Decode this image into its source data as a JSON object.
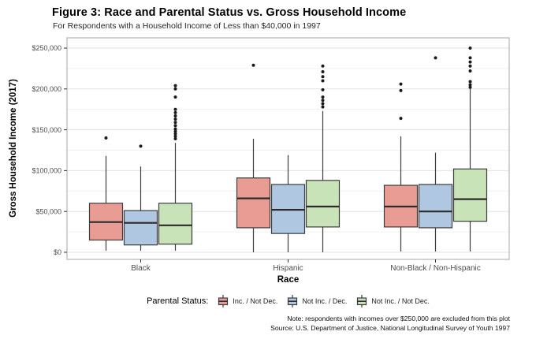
{
  "chart_data": {
    "type": "boxplot",
    "title": "Figure 3: Race and Parental Status vs. Gross Household Income",
    "subtitle": "For Respondents with a Household Income of Less than $40,000 in 1997",
    "xlabel": "Race",
    "ylabel": "Gross Household Income (2017)",
    "note": "Note: respondents with incomes over $250,000 are excluded from this plot",
    "source": "Source: U.S. Department of Justice, National Longitudinal Survey of Youth 1997",
    "legend_title": "Parental Status:",
    "legend_position": "bottom",
    "grid": true,
    "ylim": [
      0,
      250000
    ],
    "y_ticks": [
      {
        "value": 0,
        "label": "$0"
      },
      {
        "value": 50000,
        "label": "$50,000"
      },
      {
        "value": 100000,
        "label": "$100,000"
      },
      {
        "value": 150000,
        "label": "$150,000"
      },
      {
        "value": 200000,
        "label": "$200,000"
      },
      {
        "value": 250000,
        "label": "$250,000"
      }
    ],
    "y_minor_ticks": [
      25000,
      75000,
      125000,
      175000,
      225000
    ],
    "categories": [
      "Black",
      "Hispanic",
      "Non-Black / Non-Hispanic"
    ],
    "series": [
      {
        "name": "Inc. / Not Dec.",
        "color": "#E89C94",
        "boxes": [
          {
            "low": 2000,
            "q1": 15000,
            "median": 37000,
            "q3": 60000,
            "high": 118000,
            "outliers": [
              140000
            ]
          },
          {
            "low": 0,
            "q1": 30000,
            "median": 66000,
            "q3": 91000,
            "high": 139000,
            "outliers": [
              229000
            ]
          },
          {
            "low": 1000,
            "q1": 31000,
            "median": 56000,
            "q3": 82000,
            "high": 142000,
            "outliers": [
              164000,
              198000,
              206000
            ]
          }
        ]
      },
      {
        "name": "Not Inc. / Dec.",
        "color": "#AFC7E1",
        "boxes": [
          {
            "low": 2000,
            "q1": 9000,
            "median": 36000,
            "q3": 51000,
            "high": 105000,
            "outliers": [
              130000
            ]
          },
          {
            "low": 0,
            "q1": 23000,
            "median": 52000,
            "q3": 83000,
            "high": 119000,
            "outliers": []
          },
          {
            "low": 1000,
            "q1": 30000,
            "median": 50000,
            "q3": 83000,
            "high": 122000,
            "outliers": [
              238000
            ]
          }
        ]
      },
      {
        "name": "Not Inc. / Not Dec.",
        "color": "#C8E3B8",
        "boxes": [
          {
            "low": 2000,
            "q1": 10000,
            "median": 33000,
            "q3": 60000,
            "high": 134000,
            "outliers": [
              139000,
              142000,
              145000,
              148000,
              151000,
              155000,
              159000,
              163000,
              167000,
              171000,
              175000,
              190000,
              200000,
              204000
            ]
          },
          {
            "low": 0,
            "q1": 31000,
            "median": 56000,
            "q3": 88000,
            "high": 173000,
            "outliers": [
              178000,
              182000,
              186000,
              190000,
              199000,
              210000,
              215000,
              221000,
              228000
            ]
          },
          {
            "low": 1000,
            "q1": 38000,
            "median": 65000,
            "q3": 102000,
            "high": 200000,
            "outliers": [
              202000,
              205000,
              209000,
              222000,
              228000,
              233000,
              238000,
              250000
            ]
          }
        ]
      }
    ],
    "colors": {
      "box_stroke": "#3C3C3C",
      "median": "#2B2B2B",
      "outlier": "#1A1A1A",
      "grid_major": "#E3E3E3",
      "grid_minor": "#F0F0F0",
      "panel_border": "#B5B5B5",
      "axis_text": "#4D4D4D",
      "tick_mark": "#333333"
    }
  }
}
